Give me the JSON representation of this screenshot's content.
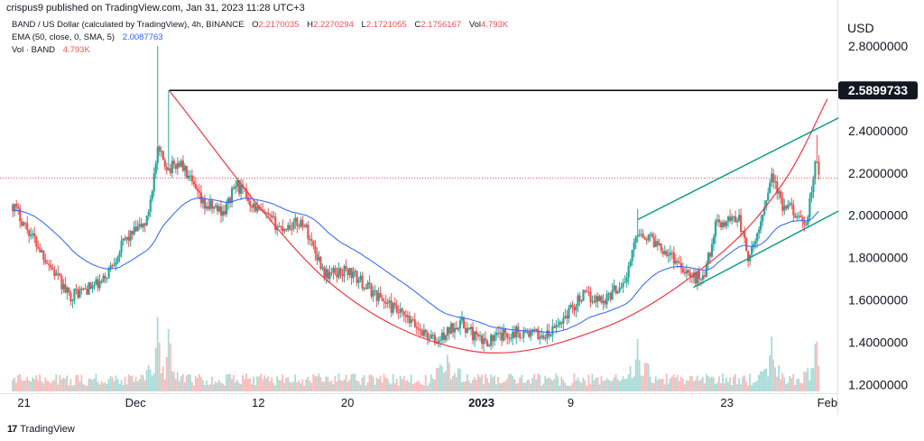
{
  "header": {
    "published": "crispus9 published on TradingView.com, Jan 31, 2023 11:28 UTC+3"
  },
  "legend": {
    "symbol": "BAND / US Dollar (calculated by TradingView), 4h, BINANCE",
    "o_label": "O",
    "o_value": "2.2170035",
    "h_label": "H",
    "h_value": "2.2270294",
    "l_label": "L",
    "l_value": "2.1721055",
    "c_label": "C",
    "c_value": "2.1756167",
    "vol_label": "Vol",
    "vol_value": "4.793K",
    "ema_label": "EMA (50, close, 0, SMA, 5)",
    "ema_value": "2.0087763",
    "vol_band_label": "Vol · BAND",
    "vol_band_value": "4.793K"
  },
  "currency": "USD",
  "watermark": "TradingView",
  "colors": {
    "up": "#26a69a",
    "down": "#ef5350",
    "ema": "#2962ff",
    "arc": "#f23645",
    "channel": "#089981",
    "resistance": "#000000",
    "current_price_line": "#ef5350"
  },
  "chart_data": {
    "type": "candlestick",
    "symbol": "BAND/USD",
    "timeframe": "4h",
    "price_axis": {
      "ticks": [
        "2.8000000",
        "2.4000000",
        "2.2000000",
        "2.0000000",
        "1.8000000",
        "1.6000000",
        "1.4000000",
        "1.2000000"
      ],
      "range": [
        1.16,
        2.94
      ]
    },
    "time_axis": {
      "ticks": [
        "21",
        "Dec",
        "12",
        "20",
        "2023",
        "9",
        "23",
        "Feb"
      ]
    },
    "resistance_label": "2.5899733",
    "resistance_level": 2.5899733,
    "anchors": [
      {
        "t": "2022-11-20",
        "p": 2.05
      },
      {
        "t": "2022-11-25",
        "p": 1.62
      },
      {
        "t": "2022-11-28",
        "p": 1.68
      },
      {
        "t": "2022-11-30",
        "p": 1.88
      },
      {
        "t": "2022-12-02",
        "p": 1.97
      },
      {
        "t": "2022-12-03",
        "p": 2.3
      },
      {
        "t": "2022-12-04",
        "p": 2.22
      },
      {
        "t": "2022-12-05",
        "p": 2.25
      },
      {
        "t": "2022-12-07",
        "p": 2.05
      },
      {
        "t": "2022-12-09",
        "p": 2.02
      },
      {
        "t": "2022-12-10",
        "p": 2.15
      },
      {
        "t": "2022-12-12",
        "p": 2.02
      },
      {
        "t": "2022-12-14",
        "p": 1.94
      },
      {
        "t": "2022-12-16",
        "p": 1.97
      },
      {
        "t": "2022-12-18",
        "p": 1.72
      },
      {
        "t": "2022-12-20",
        "p": 1.74
      },
      {
        "t": "2022-12-22",
        "p": 1.65
      },
      {
        "t": "2022-12-25",
        "p": 1.52
      },
      {
        "t": "2022-12-28",
        "p": 1.4
      },
      {
        "t": "2022-12-30",
        "p": 1.5
      },
      {
        "t": "2023-01-01",
        "p": 1.4
      },
      {
        "t": "2023-01-04",
        "p": 1.45
      },
      {
        "t": "2023-01-07",
        "p": 1.43
      },
      {
        "t": "2023-01-10",
        "p": 1.62
      },
      {
        "t": "2023-01-12",
        "p": 1.6
      },
      {
        "t": "2023-01-14",
        "p": 1.7
      },
      {
        "t": "2023-01-15",
        "p": 1.93
      },
      {
        "t": "2023-01-17",
        "p": 1.86
      },
      {
        "t": "2023-01-19",
        "p": 1.76
      },
      {
        "t": "2023-01-20",
        "p": 1.7
      },
      {
        "t": "2023-01-21",
        "p": 1.72
      },
      {
        "t": "2023-01-22",
        "p": 1.95
      },
      {
        "t": "2023-01-24",
        "p": 2.0
      },
      {
        "t": "2023-01-25",
        "p": 1.78
      },
      {
        "t": "2023-01-26",
        "p": 1.96
      },
      {
        "t": "2023-01-27",
        "p": 2.2
      },
      {
        "t": "2023-01-28",
        "p": 2.03
      },
      {
        "t": "2023-01-29",
        "p": 2.03
      },
      {
        "t": "2023-01-30",
        "p": 1.92
      },
      {
        "t": "2023-01-31",
        "p": 2.26
      },
      {
        "t": "2023-01-31T08:00",
        "p": 2.1756
      }
    ],
    "spikes": [
      {
        "t": "2022-12-03",
        "high": 2.8
      },
      {
        "t": "2022-12-04",
        "high": 2.59
      },
      {
        "t": "2023-01-15",
        "high": 2.03
      },
      {
        "t": "2023-01-31",
        "high": 2.38
      }
    ],
    "volume_spikes": [
      {
        "t": "2022-12-03",
        "level": 0.95
      },
      {
        "t": "2022-12-04",
        "level": 0.85
      },
      {
        "t": "2022-12-29",
        "level": 0.5
      },
      {
        "t": "2023-01-15",
        "level": 0.65
      },
      {
        "t": "2023-01-27",
        "level": 0.7
      },
      {
        "t": "2023-01-31",
        "level": 0.75
      }
    ],
    "drawings": {
      "resistance": {
        "from": "2022-12-04",
        "to": "2023-02-02",
        "price": 2.5899733
      },
      "rounding_bottom": [
        {
          "t": "2022-12-04",
          "p": 2.59
        },
        {
          "t": "2022-12-18",
          "p": 1.7
        },
        {
          "t": "2022-12-31",
          "p": 1.36
        },
        {
          "t": "2023-01-12",
          "p": 1.47
        },
        {
          "t": "2023-01-22",
          "p": 1.8
        },
        {
          "t": "2023-01-28",
          "p": 2.15
        },
        {
          "t": "2023-02-01",
          "p": 2.55
        }
      ],
      "channel_upper": {
        "from": {
          "t": "2023-01-15",
          "p": 1.98
        },
        "to": {
          "t": "2023-02-02",
          "p": 2.46
        }
      },
      "channel_lower": {
        "from": {
          "t": "2023-01-20",
          "p": 1.66
        },
        "to": {
          "t": "2023-02-02",
          "p": 2.02
        }
      }
    },
    "current_price": 2.1756167
  }
}
